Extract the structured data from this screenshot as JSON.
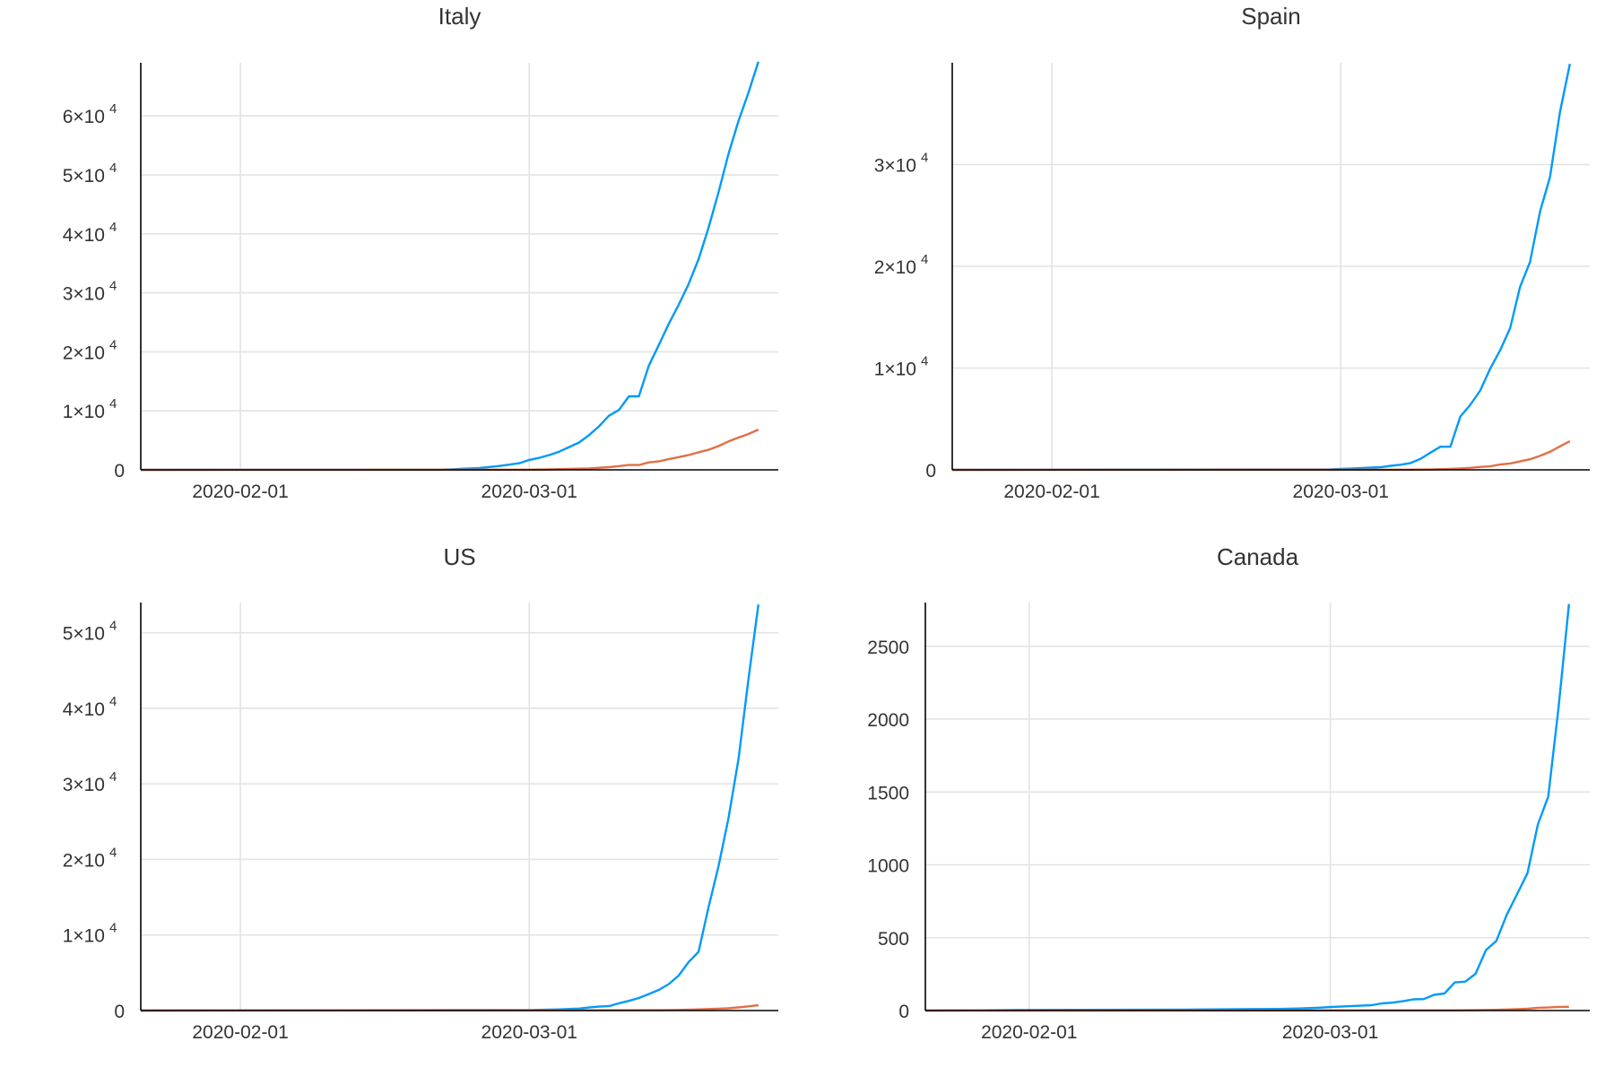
{
  "chart_data": [
    {
      "type": "line",
      "title": "Italy",
      "xlabel": "",
      "ylabel": "",
      "x_range": [
        "2020-01-22",
        "2020-03-26"
      ],
      "x_ticks": [
        "2020-02-01",
        "2020-03-01"
      ],
      "ylim": [
        0,
        69000
      ],
      "y_ticks": [
        {
          "value": 0,
          "mantissa": "0",
          "exponent": ""
        },
        {
          "value": 10000,
          "mantissa": "1×10",
          "exponent": "4"
        },
        {
          "value": 20000,
          "mantissa": "2×10",
          "exponent": "4"
        },
        {
          "value": 30000,
          "mantissa": "3×10",
          "exponent": "4"
        },
        {
          "value": 40000,
          "mantissa": "4×10",
          "exponent": "4"
        },
        {
          "value": 50000,
          "mantissa": "5×10",
          "exponent": "4"
        },
        {
          "value": 60000,
          "mantissa": "6×10",
          "exponent": "4"
        }
      ],
      "grid": true,
      "legend": "none",
      "series": [
        {
          "color": "#009af9",
          "points": [
            [
              "2020-01-22",
              0
            ],
            [
              "2020-02-21",
              20
            ],
            [
              "2020-02-23",
              155
            ],
            [
              "2020-02-25",
              322
            ],
            [
              "2020-02-27",
              655
            ],
            [
              "2020-02-29",
              1128
            ],
            [
              "2020-03-01",
              1694
            ],
            [
              "2020-03-02",
              2036
            ],
            [
              "2020-03-03",
              2502
            ],
            [
              "2020-03-04",
              3089
            ],
            [
              "2020-03-05",
              3858
            ],
            [
              "2020-03-06",
              4636
            ],
            [
              "2020-03-07",
              5883
            ],
            [
              "2020-03-08",
              7375
            ],
            [
              "2020-03-09",
              9172
            ],
            [
              "2020-03-10",
              10149
            ],
            [
              "2020-03-11",
              12462
            ],
            [
              "2020-03-12",
              12462
            ],
            [
              "2020-03-13",
              17660
            ],
            [
              "2020-03-14",
              21157
            ],
            [
              "2020-03-15",
              24747
            ],
            [
              "2020-03-16",
              27980
            ],
            [
              "2020-03-17",
              31506
            ],
            [
              "2020-03-18",
              35713
            ],
            [
              "2020-03-19",
              41035
            ],
            [
              "2020-03-20",
              47021
            ],
            [
              "2020-03-21",
              53578
            ],
            [
              "2020-03-22",
              59138
            ],
            [
              "2020-03-23",
              63927
            ],
            [
              "2020-03-24",
              69176
            ]
          ]
        },
        {
          "color": "#e26f46",
          "points": [
            [
              "2020-01-22",
              0
            ],
            [
              "2020-03-01",
              34
            ],
            [
              "2020-03-03",
              79
            ],
            [
              "2020-03-05",
              148
            ],
            [
              "2020-03-07",
              233
            ],
            [
              "2020-03-09",
              463
            ],
            [
              "2020-03-10",
              631
            ],
            [
              "2020-03-11",
              827
            ],
            [
              "2020-03-12",
              827
            ],
            [
              "2020-03-13",
              1266
            ],
            [
              "2020-03-14",
              1441
            ],
            [
              "2020-03-15",
              1809
            ],
            [
              "2020-03-16",
              2158
            ],
            [
              "2020-03-17",
              2503
            ],
            [
              "2020-03-18",
              2978
            ],
            [
              "2020-03-19",
              3405
            ],
            [
              "2020-03-20",
              4032
            ],
            [
              "2020-03-21",
              4825
            ],
            [
              "2020-03-22",
              5476
            ],
            [
              "2020-03-23",
              6077
            ],
            [
              "2020-03-24",
              6820
            ]
          ]
        }
      ]
    },
    {
      "type": "line",
      "title": "Spain",
      "xlabel": "",
      "ylabel": "",
      "x_range": [
        "2020-01-22",
        "2020-03-26"
      ],
      "x_ticks": [
        "2020-02-01",
        "2020-03-01"
      ],
      "ylim": [
        0,
        40000
      ],
      "y_ticks": [
        {
          "value": 0,
          "mantissa": "0",
          "exponent": ""
        },
        {
          "value": 10000,
          "mantissa": "1×10",
          "exponent": "4"
        },
        {
          "value": 20000,
          "mantissa": "2×10",
          "exponent": "4"
        },
        {
          "value": 30000,
          "mantissa": "3×10",
          "exponent": "4"
        }
      ],
      "grid": true,
      "legend": "none",
      "series": [
        {
          "color": "#009af9",
          "points": [
            [
              "2020-01-22",
              0
            ],
            [
              "2020-02-29",
              45
            ],
            [
              "2020-03-01",
              84
            ],
            [
              "2020-03-02",
              120
            ],
            [
              "2020-03-03",
              165
            ],
            [
              "2020-03-04",
              222
            ],
            [
              "2020-03-05",
              259
            ],
            [
              "2020-03-06",
              400
            ],
            [
              "2020-03-07",
              500
            ],
            [
              "2020-03-08",
              673
            ],
            [
              "2020-03-09",
              1073
            ],
            [
              "2020-03-10",
              1695
            ],
            [
              "2020-03-11",
              2277
            ],
            [
              "2020-03-12",
              2277
            ],
            [
              "2020-03-13",
              5232
            ],
            [
              "2020-03-14",
              6391
            ],
            [
              "2020-03-15",
              7798
            ],
            [
              "2020-03-16",
              9942
            ],
            [
              "2020-03-17",
              11748
            ],
            [
              "2020-03-18",
              13910
            ],
            [
              "2020-03-19",
              17963
            ],
            [
              "2020-03-20",
              20410
            ],
            [
              "2020-03-21",
              25374
            ],
            [
              "2020-03-22",
              28768
            ],
            [
              "2020-03-23",
              35136
            ],
            [
              "2020-03-24",
              39885
            ]
          ]
        },
        {
          "color": "#e26f46",
          "points": [
            [
              "2020-01-22",
              0
            ],
            [
              "2020-03-08",
              17
            ],
            [
              "2020-03-10",
              36
            ],
            [
              "2020-03-12",
              86
            ],
            [
              "2020-03-13",
              133
            ],
            [
              "2020-03-14",
              195
            ],
            [
              "2020-03-15",
              289
            ],
            [
              "2020-03-16",
              342
            ],
            [
              "2020-03-17",
              533
            ],
            [
              "2020-03-18",
              623
            ],
            [
              "2020-03-19",
              830
            ],
            [
              "2020-03-20",
              1043
            ],
            [
              "2020-03-21",
              1375
            ],
            [
              "2020-03-22",
              1772
            ],
            [
              "2020-03-23",
              2311
            ],
            [
              "2020-03-24",
              2808
            ]
          ]
        }
      ]
    },
    {
      "type": "line",
      "title": "US",
      "xlabel": "",
      "ylabel": "",
      "x_range": [
        "2020-01-22",
        "2020-03-26"
      ],
      "x_ticks": [
        "2020-02-01",
        "2020-03-01"
      ],
      "ylim": [
        0,
        54000
      ],
      "y_ticks": [
        {
          "value": 0,
          "mantissa": "0",
          "exponent": ""
        },
        {
          "value": 10000,
          "mantissa": "1×10",
          "exponent": "4"
        },
        {
          "value": 20000,
          "mantissa": "2×10",
          "exponent": "4"
        },
        {
          "value": 30000,
          "mantissa": "3×10",
          "exponent": "4"
        },
        {
          "value": 40000,
          "mantissa": "4×10",
          "exponent": "4"
        },
        {
          "value": 50000,
          "mantissa": "5×10",
          "exponent": "4"
        }
      ],
      "grid": true,
      "legend": "none",
      "series": [
        {
          "color": "#009af9",
          "points": [
            [
              "2020-01-22",
              1
            ],
            [
              "2020-02-29",
              68
            ],
            [
              "2020-03-01",
              74
            ],
            [
              "2020-03-02",
              98
            ],
            [
              "2020-03-03",
              118
            ],
            [
              "2020-03-04",
              149
            ],
            [
              "2020-03-05",
              217
            ],
            [
              "2020-03-06",
              262
            ],
            [
              "2020-03-07",
              402
            ],
            [
              "2020-03-08",
              518
            ],
            [
              "2020-03-09",
              583
            ],
            [
              "2020-03-10",
              959
            ],
            [
              "2020-03-11",
              1281
            ],
            [
              "2020-03-12",
              1663
            ],
            [
              "2020-03-13",
              2179
            ],
            [
              "2020-03-14",
              2727
            ],
            [
              "2020-03-15",
              3499
            ],
            [
              "2020-03-16",
              4632
            ],
            [
              "2020-03-17",
              6421
            ],
            [
              "2020-03-18",
              7786
            ],
            [
              "2020-03-19",
              13680
            ],
            [
              "2020-03-20",
              19101
            ],
            [
              "2020-03-21",
              25493
            ],
            [
              "2020-03-22",
              33276
            ],
            [
              "2020-03-23",
              43847
            ],
            [
              "2020-03-24",
              53740
            ]
          ]
        },
        {
          "color": "#e26f46",
          "points": [
            [
              "2020-01-22",
              0
            ],
            [
              "2020-03-14",
              50
            ],
            [
              "2020-03-16",
              86
            ],
            [
              "2020-03-18",
              150
            ],
            [
              "2020-03-19",
              206
            ],
            [
              "2020-03-20",
              255
            ],
            [
              "2020-03-21",
              301
            ],
            [
              "2020-03-22",
              413
            ],
            [
              "2020-03-23",
              553
            ],
            [
              "2020-03-24",
              706
            ]
          ]
        }
      ]
    },
    {
      "type": "line",
      "title": "Canada",
      "xlabel": "",
      "ylabel": "",
      "x_range": [
        "2020-01-22",
        "2020-03-26"
      ],
      "x_ticks": [
        "2020-02-01",
        "2020-03-01"
      ],
      "ylim": [
        0,
        2800
      ],
      "y_ticks": [
        {
          "value": 0,
          "mantissa": "0",
          "exponent": ""
        },
        {
          "value": 500,
          "mantissa": "500",
          "exponent": ""
        },
        {
          "value": 1000,
          "mantissa": "1000",
          "exponent": ""
        },
        {
          "value": 1500,
          "mantissa": "1500",
          "exponent": ""
        },
        {
          "value": 2000,
          "mantissa": "2000",
          "exponent": ""
        },
        {
          "value": 2500,
          "mantissa": "2500",
          "exponent": ""
        }
      ],
      "grid": true,
      "legend": "none",
      "series": [
        {
          "color": "#009af9",
          "points": [
            [
              "2020-01-22",
              0
            ],
            [
              "2020-01-26",
              1
            ],
            [
              "2020-01-27",
              1
            ],
            [
              "2020-01-31",
              4
            ],
            [
              "2020-02-06",
              5
            ],
            [
              "2020-02-16",
              7
            ],
            [
              "2020-02-21",
              9
            ],
            [
              "2020-02-25",
              11
            ],
            [
              "2020-02-27",
              14
            ],
            [
              "2020-02-29",
              20
            ],
            [
              "2020-03-01",
              24
            ],
            [
              "2020-03-03",
              30
            ],
            [
              "2020-03-05",
              37
            ],
            [
              "2020-03-06",
              49
            ],
            [
              "2020-03-07",
              54
            ],
            [
              "2020-03-08",
              64
            ],
            [
              "2020-03-09",
              77
            ],
            [
              "2020-03-10",
              79
            ],
            [
              "2020-03-11",
              108
            ],
            [
              "2020-03-12",
              117
            ],
            [
              "2020-03-13",
              193
            ],
            [
              "2020-03-14",
              198
            ],
            [
              "2020-03-15",
              252
            ],
            [
              "2020-03-16",
              415
            ],
            [
              "2020-03-17",
              478
            ],
            [
              "2020-03-18",
              657
            ],
            [
              "2020-03-19",
              800
            ],
            [
              "2020-03-20",
              943
            ],
            [
              "2020-03-21",
              1277
            ],
            [
              "2020-03-22",
              1469
            ],
            [
              "2020-03-23",
              2088
            ],
            [
              "2020-03-24",
              2790
            ]
          ]
        },
        {
          "color": "#e26f46",
          "points": [
            [
              "2020-01-22",
              0
            ],
            [
              "2020-03-13",
              1
            ],
            [
              "2020-03-17",
              5
            ],
            [
              "2020-03-19",
              9
            ],
            [
              "2020-03-20",
              12
            ],
            [
              "2020-03-21",
              19
            ],
            [
              "2020-03-22",
              21
            ],
            [
              "2020-03-23",
              25
            ],
            [
              "2020-03-24",
              26
            ]
          ]
        }
      ]
    }
  ]
}
